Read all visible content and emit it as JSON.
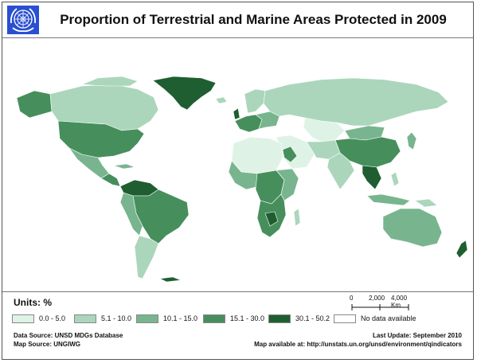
{
  "title": "Proportion of Terrestrial and Marine Areas Protected in 2009",
  "units_label": "Units: %",
  "legend": [
    {
      "label": "0.0 - 5.0",
      "color": "#dff2e6"
    },
    {
      "label": "5.1 - 10.0",
      "color": "#abd6bb"
    },
    {
      "label": "10.1 - 15.0",
      "color": "#78b58f"
    },
    {
      "label": "15.1 - 30.0",
      "color": "#468f5c"
    },
    {
      "label": "30.1 - 50.2",
      "color": "#1e5e30"
    },
    {
      "label": "No data available",
      "color": "#ffffff"
    }
  ],
  "scale": {
    "ticks": [
      "0",
      "2,000",
      "4,000 Km"
    ]
  },
  "sources": {
    "data_source": "Data Source: UNSD MDGs Database",
    "map_source": "Map Source: UNGIWG",
    "last_update": "Last Update: September 2010",
    "map_available": "Map available at: http://unstats.un.org/unsd/environment/qindicators"
  },
  "colors": {
    "class1": "#dff2e6",
    "class2": "#abd6bb",
    "class3": "#78b58f",
    "class4": "#468f5c",
    "class5": "#1e5e30",
    "logo_blue": "#2a4fd1",
    "border": "#ffffff"
  }
}
